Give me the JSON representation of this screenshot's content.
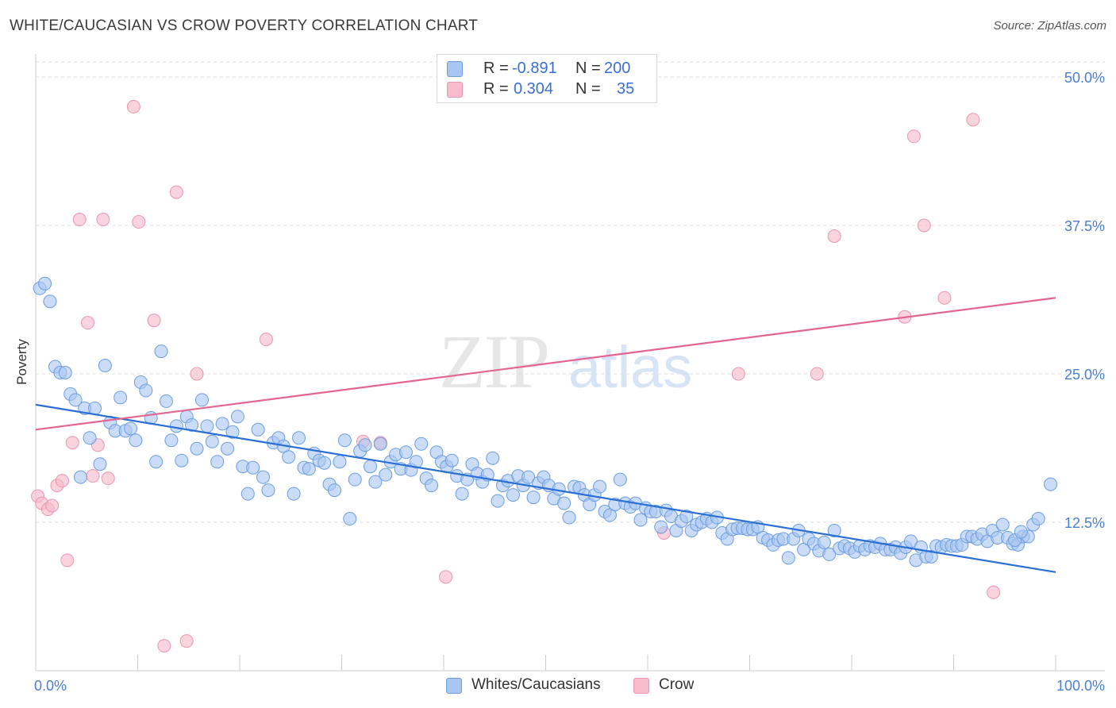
{
  "header": {
    "title": "WHITE/CAUCASIAN VS CROW POVERTY CORRELATION CHART",
    "source": "Source: ZipAtlas.com"
  },
  "legend": {
    "rows": [
      {
        "r_label": "R =",
        "r_value": "-0.891",
        "n_label": "N =",
        "n_value": "200"
      },
      {
        "r_label": "R =",
        "r_value": "0.304",
        "n_label": "N =",
        "n_value": "35"
      }
    ]
  },
  "watermark": {
    "zip": "ZIP",
    "atlas": "atlas"
  },
  "colors": {
    "blue_fill": "#a9c6f0",
    "blue_stroke": "#6c9de0",
    "blue_line": "#2a6fd6",
    "pink_fill": "#f6bccd",
    "pink_stroke": "#e996b0",
    "pink_line": "#e2668f",
    "tick_text": "#4a7fcf",
    "grid": "#dddddd"
  },
  "chart_data": {
    "type": "scatter",
    "title": "WHITE/CAUCASIAN VS CROW POVERTY CORRELATION CHART",
    "xlabel": "",
    "ylabel": "Poverty",
    "xlim": [
      0,
      100
    ],
    "ylim": [
      0,
      52
    ],
    "x_tick_labels": [
      "0.0%",
      "100.0%"
    ],
    "y_ticks": [
      12.5,
      25.0,
      37.5,
      50.0
    ],
    "y_tick_labels": [
      "12.5%",
      "25.0%",
      "37.5%",
      "50.0%"
    ],
    "grid": "horizontal dashed",
    "legend_position": "top-center",
    "series": [
      {
        "name": "Whites/Caucasians",
        "color": "#a9c6f0",
        "trend": {
          "x": [
            0,
            100
          ],
          "y": [
            22.4,
            8.3
          ]
        },
        "points": [
          [
            0.4,
            32.2
          ],
          [
            0.9,
            32.6
          ],
          [
            1.4,
            31.1
          ],
          [
            1.9,
            25.6
          ],
          [
            2.4,
            25.1
          ],
          [
            2.9,
            25.1
          ],
          [
            3.4,
            23.3
          ],
          [
            3.9,
            22.8
          ],
          [
            4.4,
            16.3
          ],
          [
            4.8,
            22.1
          ],
          [
            5.3,
            19.6
          ],
          [
            5.8,
            22.1
          ],
          [
            6.3,
            17.4
          ],
          [
            6.8,
            25.7
          ],
          [
            7.3,
            20.9
          ],
          [
            7.8,
            20.2
          ],
          [
            8.3,
            23.0
          ],
          [
            8.8,
            20.2
          ],
          [
            9.3,
            20.4
          ],
          [
            9.8,
            19.4
          ],
          [
            10.3,
            24.3
          ],
          [
            10.8,
            23.6
          ],
          [
            11.3,
            21.3
          ],
          [
            11.8,
            17.6
          ],
          [
            12.3,
            26.9
          ],
          [
            12.8,
            22.7
          ],
          [
            13.3,
            19.4
          ],
          [
            13.8,
            20.6
          ],
          [
            14.3,
            17.7
          ],
          [
            14.8,
            21.4
          ],
          [
            15.3,
            20.7
          ],
          [
            15.8,
            18.7
          ],
          [
            16.3,
            22.8
          ],
          [
            16.8,
            20.6
          ],
          [
            17.3,
            19.3
          ],
          [
            17.8,
            17.6
          ],
          [
            18.3,
            20.8
          ],
          [
            18.8,
            18.7
          ],
          [
            19.3,
            20.1
          ],
          [
            19.8,
            21.4
          ],
          [
            20.3,
            17.2
          ],
          [
            20.8,
            14.9
          ],
          [
            21.3,
            17.1
          ],
          [
            21.8,
            20.3
          ],
          [
            22.3,
            16.3
          ],
          [
            22.8,
            15.2
          ],
          [
            23.3,
            19.2
          ],
          [
            23.8,
            19.6
          ],
          [
            24.3,
            18.9
          ],
          [
            24.8,
            18.0
          ],
          [
            25.3,
            14.9
          ],
          [
            25.8,
            19.6
          ],
          [
            26.3,
            17.1
          ],
          [
            26.8,
            17.0
          ],
          [
            27.3,
            18.3
          ],
          [
            27.8,
            17.7
          ],
          [
            28.3,
            17.5
          ],
          [
            28.8,
            15.7
          ],
          [
            29.3,
            15.2
          ],
          [
            29.8,
            17.6
          ],
          [
            30.3,
            19.4
          ],
          [
            30.8,
            12.8
          ],
          [
            31.3,
            16.1
          ],
          [
            31.8,
            18.5
          ],
          [
            32.3,
            19.0
          ],
          [
            32.8,
            17.2
          ],
          [
            33.3,
            15.9
          ],
          [
            33.8,
            19.1
          ],
          [
            34.3,
            16.5
          ],
          [
            34.8,
            17.6
          ],
          [
            35.3,
            18.2
          ],
          [
            35.8,
            17.0
          ],
          [
            36.3,
            18.4
          ],
          [
            36.8,
            16.9
          ],
          [
            37.3,
            17.6
          ],
          [
            37.8,
            19.1
          ],
          [
            38.3,
            16.2
          ],
          [
            38.8,
            15.6
          ],
          [
            39.3,
            18.4
          ],
          [
            39.8,
            17.6
          ],
          [
            40.3,
            17.2
          ],
          [
            40.8,
            17.7
          ],
          [
            41.3,
            16.4
          ],
          [
            41.8,
            14.9
          ],
          [
            42.3,
            16.1
          ],
          [
            42.8,
            17.4
          ],
          [
            43.3,
            16.6
          ],
          [
            43.8,
            15.9
          ],
          [
            44.3,
            16.5
          ],
          [
            44.8,
            17.9
          ],
          [
            45.3,
            14.3
          ],
          [
            45.8,
            15.6
          ],
          [
            46.3,
            16.0
          ],
          [
            46.8,
            14.8
          ],
          [
            47.3,
            16.4
          ],
          [
            47.8,
            15.6
          ],
          [
            48.3,
            16.3
          ],
          [
            48.8,
            14.6
          ],
          [
            49.3,
            15.8
          ],
          [
            49.8,
            16.3
          ],
          [
            50.3,
            15.6
          ],
          [
            50.8,
            14.5
          ],
          [
            51.3,
            15.3
          ],
          [
            51.8,
            14.1
          ],
          [
            52.3,
            12.9
          ],
          [
            52.8,
            15.5
          ],
          [
            53.3,
            15.4
          ],
          [
            53.8,
            14.8
          ],
          [
            54.3,
            14.0
          ],
          [
            54.8,
            14.8
          ],
          [
            55.3,
            15.5
          ],
          [
            55.8,
            13.4
          ],
          [
            56.3,
            13.1
          ],
          [
            56.8,
            14.0
          ],
          [
            57.3,
            16.1
          ],
          [
            57.8,
            14.1
          ],
          [
            58.3,
            13.8
          ],
          [
            58.8,
            14.1
          ],
          [
            59.3,
            12.7
          ],
          [
            59.8,
            13.7
          ],
          [
            60.3,
            13.4
          ],
          [
            60.8,
            13.4
          ],
          [
            61.3,
            12.1
          ],
          [
            61.8,
            13.5
          ],
          [
            62.3,
            13.0
          ],
          [
            62.8,
            11.8
          ],
          [
            63.3,
            12.6
          ],
          [
            63.8,
            13.0
          ],
          [
            64.3,
            11.8
          ],
          [
            64.8,
            12.3
          ],
          [
            65.3,
            12.5
          ],
          [
            65.8,
            12.8
          ],
          [
            66.3,
            12.5
          ],
          [
            66.8,
            12.9
          ],
          [
            67.3,
            11.6
          ],
          [
            67.8,
            11.1
          ],
          [
            68.3,
            11.9
          ],
          [
            68.8,
            12.0
          ],
          [
            69.3,
            12.0
          ],
          [
            69.8,
            11.9
          ],
          [
            70.3,
            11.9
          ],
          [
            70.8,
            12.1
          ],
          [
            71.3,
            11.2
          ],
          [
            71.8,
            11.0
          ],
          [
            72.3,
            10.6
          ],
          [
            72.8,
            11.0
          ],
          [
            73.3,
            11.1
          ],
          [
            73.8,
            9.5
          ],
          [
            74.3,
            11.1
          ],
          [
            74.8,
            11.8
          ],
          [
            75.3,
            10.2
          ],
          [
            75.8,
            11.1
          ],
          [
            76.3,
            10.7
          ],
          [
            76.8,
            10.1
          ],
          [
            77.3,
            10.8
          ],
          [
            77.8,
            9.8
          ],
          [
            78.3,
            11.8
          ],
          [
            78.8,
            10.3
          ],
          [
            79.3,
            10.5
          ],
          [
            79.8,
            10.3
          ],
          [
            80.3,
            10.0
          ],
          [
            80.8,
            10.5
          ],
          [
            81.3,
            10.2
          ],
          [
            81.8,
            10.5
          ],
          [
            82.3,
            10.4
          ],
          [
            82.8,
            10.7
          ],
          [
            83.3,
            10.2
          ],
          [
            83.8,
            10.2
          ],
          [
            84.3,
            10.4
          ],
          [
            84.8,
            9.9
          ],
          [
            85.3,
            10.4
          ],
          [
            85.8,
            10.9
          ],
          [
            86.3,
            9.3
          ],
          [
            86.8,
            10.4
          ],
          [
            87.3,
            9.6
          ],
          [
            87.8,
            9.6
          ],
          [
            88.3,
            10.5
          ],
          [
            88.8,
            10.4
          ],
          [
            89.3,
            10.6
          ],
          [
            89.8,
            10.5
          ],
          [
            90.3,
            10.5
          ],
          [
            90.8,
            10.6
          ],
          [
            91.3,
            11.3
          ],
          [
            91.8,
            11.3
          ],
          [
            92.3,
            11.1
          ],
          [
            92.8,
            11.5
          ],
          [
            93.3,
            10.9
          ],
          [
            93.8,
            11.8
          ],
          [
            94.3,
            11.2
          ],
          [
            94.8,
            12.3
          ],
          [
            95.3,
            11.2
          ],
          [
            95.8,
            10.7
          ],
          [
            96.3,
            10.6
          ],
          [
            96.8,
            11.3
          ],
          [
            97.3,
            11.3
          ],
          [
            97.8,
            12.3
          ],
          [
            98.3,
            12.8
          ],
          [
            99.5,
            15.7
          ],
          [
            96.0,
            11.0
          ],
          [
            96.6,
            11.7
          ]
        ]
      },
      {
        "name": "Crow",
        "color": "#f6bccd",
        "trend": {
          "x": [
            0,
            100
          ],
          "y": [
            20.3,
            31.4
          ]
        },
        "points": [
          [
            0.2,
            14.7
          ],
          [
            0.6,
            14.1
          ],
          [
            1.2,
            13.6
          ],
          [
            1.6,
            13.9
          ],
          [
            2.1,
            15.6
          ],
          [
            2.6,
            16.0
          ],
          [
            3.1,
            9.3
          ],
          [
            3.6,
            19.2
          ],
          [
            4.3,
            38.0
          ],
          [
            5.1,
            29.3
          ],
          [
            5.6,
            16.4
          ],
          [
            6.1,
            19.0
          ],
          [
            6.6,
            38.0
          ],
          [
            7.1,
            16.2
          ],
          [
            9.6,
            47.5
          ],
          [
            10.1,
            37.8
          ],
          [
            11.6,
            29.5
          ],
          [
            12.6,
            2.1
          ],
          [
            13.8,
            40.3
          ],
          [
            14.8,
            2.5
          ],
          [
            15.8,
            25.0
          ],
          [
            22.6,
            27.9
          ],
          [
            32.1,
            19.3
          ],
          [
            33.8,
            19.2
          ],
          [
            40.2,
            7.9
          ],
          [
            61.6,
            11.6
          ],
          [
            68.9,
            25.0
          ],
          [
            76.6,
            25.0
          ],
          [
            78.3,
            36.6
          ],
          [
            85.2,
            29.8
          ],
          [
            86.1,
            45.0
          ],
          [
            87.1,
            37.5
          ],
          [
            89.1,
            31.4
          ],
          [
            91.9,
            46.4
          ],
          [
            93.9,
            6.6
          ]
        ]
      }
    ]
  },
  "bottom_legend": {
    "items": [
      {
        "label": "Whites/Caucasians"
      },
      {
        "label": "Crow"
      }
    ]
  }
}
